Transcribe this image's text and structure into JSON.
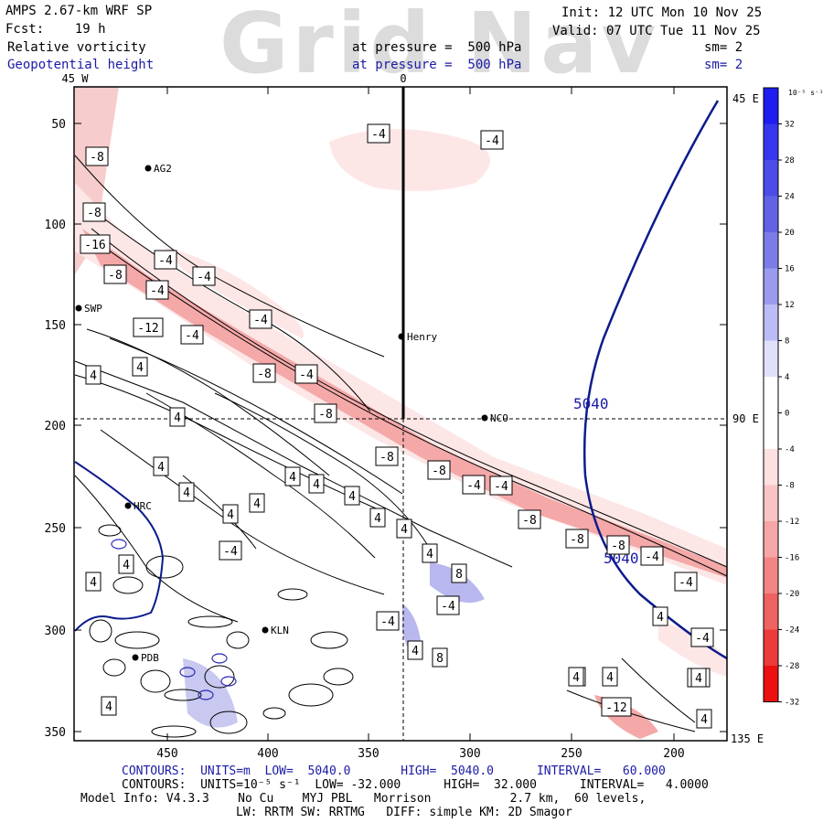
{
  "header": {
    "model": "AMPS 2.67-km WRF SP",
    "fcst": "Fcst:    19 h",
    "init": "Init: 12 UTC Mon 10 Nov 25",
    "valid": "Valid: 07 UTC Tue 11 Nov 25",
    "field1": "Relative vorticity",
    "field1_level": "at pressure =  500 hPa",
    "field1_sm": "sm= 2",
    "field2": "Geopotential height",
    "field2_level": "at pressure =  500 hPa",
    "field2_sm": "sm= 2",
    "watermark": "Grid Nav"
  },
  "map": {
    "lon_labels": {
      "west": "45 W",
      "zero": "0",
      "e45": "45 E",
      "e90": "90 E",
      "e135": "135 E"
    },
    "y_ticks": [
      "50",
      "100",
      "150",
      "200",
      "250",
      "300",
      "350"
    ],
    "x_ticks": [
      "450",
      "400",
      "350",
      "300",
      "250",
      "200"
    ],
    "stations": [
      {
        "name": "AG2"
      },
      {
        "name": "SWP"
      },
      {
        "name": "Henry"
      },
      {
        "name": "NCO"
      },
      {
        "name": "HRC"
      },
      {
        "name": "KLN"
      },
      {
        "name": "PDB"
      }
    ],
    "height_contour_labels": [
      "5040",
      "5040"
    ],
    "vorticity_labels": [
      "-4",
      "-4",
      "-8",
      "-8",
      "-16",
      "-8",
      "-4",
      "-4",
      "-4",
      "-4",
      "-12",
      "-4",
      "-8",
      "-4",
      "-8",
      "-8",
      "-8",
      "-4",
      "-4",
      "-8",
      "-8",
      "-8",
      "-4",
      "-4",
      "-4",
      "-12",
      "-4",
      "-4",
      "4",
      "4",
      "4",
      "4",
      "4",
      "4",
      "4",
      "4",
      "4",
      "4",
      "4",
      "4",
      "4",
      "4",
      "4",
      "4",
      "4",
      "4",
      "4",
      "4",
      "4",
      "4",
      "4",
      "4",
      "8",
      "8",
      "-4",
      "-4"
    ]
  },
  "colorbar": {
    "unit": "10⁻⁵ s⁻¹",
    "labels": [
      "32",
      "28",
      "24",
      "20",
      "16",
      "12",
      "8",
      "4",
      "0",
      "-4",
      "-8",
      "-12",
      "-16",
      "-20",
      "-24",
      "-28",
      "-32"
    ],
    "colors": [
      "#1d1df2",
      "#3636ee",
      "#4c4ce9",
      "#6262e6",
      "#7c7ce8",
      "#9a9aee",
      "#bcbcf5",
      "#e0e0fb",
      "#ffffff",
      "#ffffff",
      "#fde0e0",
      "#f9c4c4",
      "#f6a6a6",
      "#f28585",
      "#ef6262",
      "#ed3a3a",
      "#ec1010"
    ]
  },
  "footer": {
    "line1": "CONTOURS:  UNITS=m  LOW=  5040.0       HIGH=  5040.0      INTERVAL=   60.000",
    "line2": "CONTOURS:  UNITS=10⁻⁵ s⁻¹  LOW= -32.000      HIGH=  32.000      INTERVAL=   4.0000",
    "line3": "Model Info: V4.3.3    No Cu    MYJ PBL   Morrison           2.7 km,  60 levels,",
    "line4": "LW: RRTM SW: RRTMG   DIFF: simple KM: 2D Smagor"
  },
  "colors": {
    "height_contour": "#0c1c8c",
    "frame": "#000000"
  }
}
